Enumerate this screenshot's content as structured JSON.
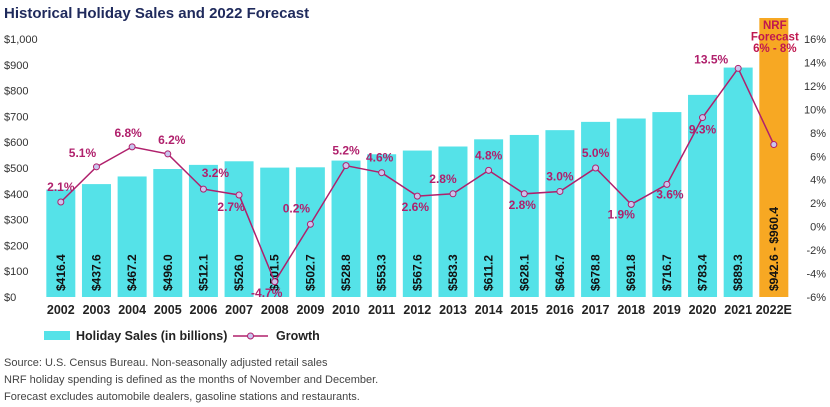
{
  "colors": {
    "bar": "#55e2e8",
    "forecast_bar": "#f7a823",
    "growth_line": "#b0206c",
    "marker_fill": "#c9c6ee",
    "title": "#1f2a5c",
    "nrf_text": "#c0174f"
  },
  "chart_data": {
    "type": "bar",
    "title": "Historical Holiday Sales and 2022 Forecast",
    "categories": [
      "2002",
      "2003",
      "2004",
      "2005",
      "2006",
      "2007",
      "2008",
      "2009",
      "2010",
      "2011",
      "2012",
      "2013",
      "2014",
      "2015",
      "2016",
      "2017",
      "2018",
      "2019",
      "2020",
      "2021",
      "2022E"
    ],
    "ylim": [
      0,
      1000
    ],
    "yticks": [
      0,
      100,
      200,
      300,
      400,
      500,
      600,
      700,
      800,
      900,
      1000
    ],
    "ytick_labels": [
      "$0",
      "$100",
      "$200",
      "$300",
      "$400",
      "$500",
      "$600",
      "$700",
      "$800",
      "$900",
      "$1,000"
    ],
    "y2lim": [
      -6,
      16
    ],
    "y2ticks": [
      -6,
      -4,
      -2,
      0,
      2,
      4,
      6,
      8,
      10,
      12,
      14,
      16
    ],
    "y2tick_labels": [
      "-6%",
      "-4%",
      "-2%",
      "0%",
      "2%",
      "4%",
      "6%",
      "8%",
      "10%",
      "12%",
      "14%",
      "16%"
    ],
    "series": [
      {
        "name": "Holiday Sales (in billions)",
        "type": "bar",
        "values": [
          416.4,
          437.6,
          467.2,
          496.0,
          512.1,
          526.0,
          501.5,
          502.7,
          528.8,
          553.3,
          567.6,
          583.3,
          611.2,
          628.1,
          646.7,
          678.8,
          691.8,
          716.7,
          783.4,
          889.3,
          960.4
        ],
        "value_labels": [
          "$416.4",
          "$437.6",
          "$467.2",
          "$496.0",
          "$512.1",
          "$526.0",
          "$501.5",
          "$502.7",
          "$528.8",
          "$553.3",
          "$567.6",
          "$583.3",
          "$611.2",
          "$628.1",
          "$646.7",
          "$678.8",
          "$691.8",
          "$716.7",
          "$783.4",
          "$889.3",
          "$942.6 - $960.4"
        ]
      },
      {
        "name": "Growth",
        "type": "line",
        "axis": "secondary",
        "values": [
          2.1,
          5.1,
          6.8,
          6.2,
          3.2,
          2.7,
          -4.7,
          0.2,
          5.2,
          4.6,
          2.6,
          2.8,
          4.8,
          2.8,
          3.0,
          5.0,
          1.9,
          3.6,
          9.3,
          13.5,
          7.0
        ],
        "value_labels": [
          "2.1%",
          "5.1%",
          "6.8%",
          "6.2%",
          "3.2%",
          "2.7%",
          "-4.7%",
          "0.2%",
          "5.2%",
          "4.6%",
          "2.6%",
          "2.8%",
          "4.8%",
          "2.8%",
          "3.0%",
          "5.0%",
          "1.9%",
          "3.6%",
          "9.3%",
          "13.5%",
          ""
        ]
      }
    ],
    "forecast_annotation": [
      "NRF",
      "Forecast",
      "6% - 8%"
    ],
    "legend": [
      "Holiday Sales (in billions)",
      "Growth"
    ],
    "legend_position": "bottom-left",
    "grid": false
  },
  "footnotes": [
    "Source: U.S. Census Bureau. Non-seasonally adjusted retail sales",
    "NRF holiday spending is defined as the months of November and December.",
    "Forecast excludes automobile dealers, gasoline stations and restaurants."
  ]
}
